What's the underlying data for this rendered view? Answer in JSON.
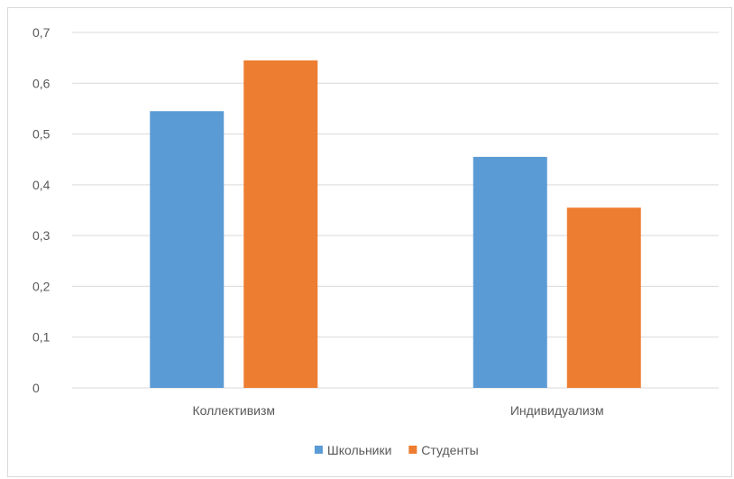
{
  "chart_data": {
    "type": "bar",
    "title": "",
    "xlabel": "",
    "ylabel": "",
    "categories": [
      "Коллективизм",
      "Индивидуализм"
    ],
    "series": [
      {
        "name": "Школьники",
        "values": [
          0.545,
          0.455
        ],
        "color": "#5b9bd5"
      },
      {
        "name": "Студенты",
        "values": [
          0.645,
          0.355
        ],
        "color": "#ed7d31"
      }
    ],
    "ylim": [
      0,
      0.7
    ],
    "yticks": [
      "0",
      "0,1",
      "0,2",
      "0,3",
      "0,4",
      "0,5",
      "0,6",
      "0,7"
    ],
    "grid": true,
    "legend": "bottom-center"
  }
}
